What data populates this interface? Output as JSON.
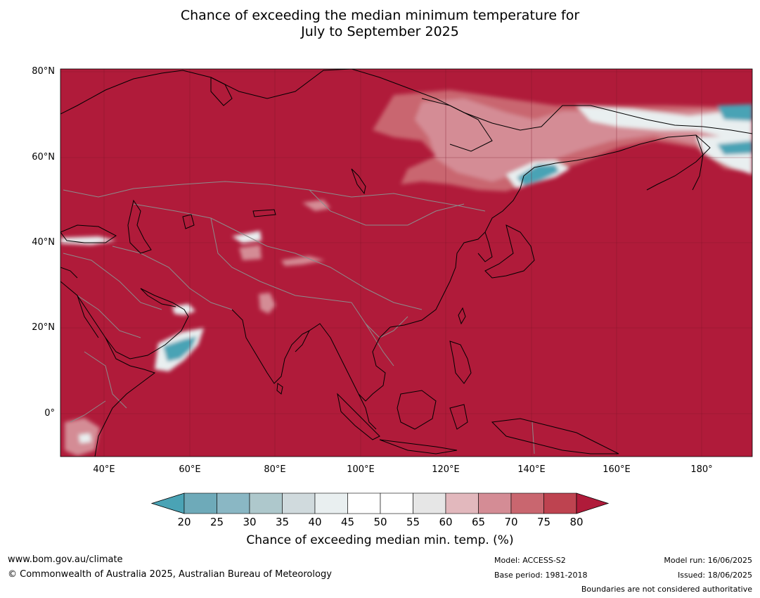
{
  "title": {
    "line1": "Chance of exceeding the median minimum temperature for",
    "line2": "July to September 2025"
  },
  "map": {
    "lat_labels": [
      "80°N",
      "60°N",
      "40°N",
      "20°N",
      "0°"
    ],
    "lon_labels": [
      "40°E",
      "60°E",
      "80°E",
      "100°E",
      "120°E",
      "140°E",
      "160°E",
      "180°"
    ],
    "background_color": "#b01b3a"
  },
  "colorbar": {
    "ticks": [
      "20",
      "25",
      "30",
      "35",
      "40",
      "45",
      "50",
      "55",
      "60",
      "65",
      "70",
      "75",
      "80"
    ],
    "colors": [
      "#6eaab9",
      "#8ab7c4",
      "#aec8cc",
      "#d0dadd",
      "#e9eff0",
      "#ffffff",
      "#ffffff",
      "#e6e6e6",
      "#e2b8bd",
      "#d48c95",
      "#c9666f",
      "#be4350"
    ],
    "under_color": "#4aa3b5",
    "over_color": "#b01b3a",
    "label": "Chance of exceeding median min. temp. (%)"
  },
  "footer": {
    "website": "www.bom.gov.au/climate",
    "copyright": "© Commonwealth of Australia 2025, Australian Bureau of Meteorology",
    "model": "Model: ACCESS-S2",
    "base_period": "Base period: 1981-2018",
    "model_run": "Model run: 16/06/2025",
    "issued": "Issued: 18/06/2025",
    "disclaimer": "Boundaries are not considered authoritative"
  }
}
